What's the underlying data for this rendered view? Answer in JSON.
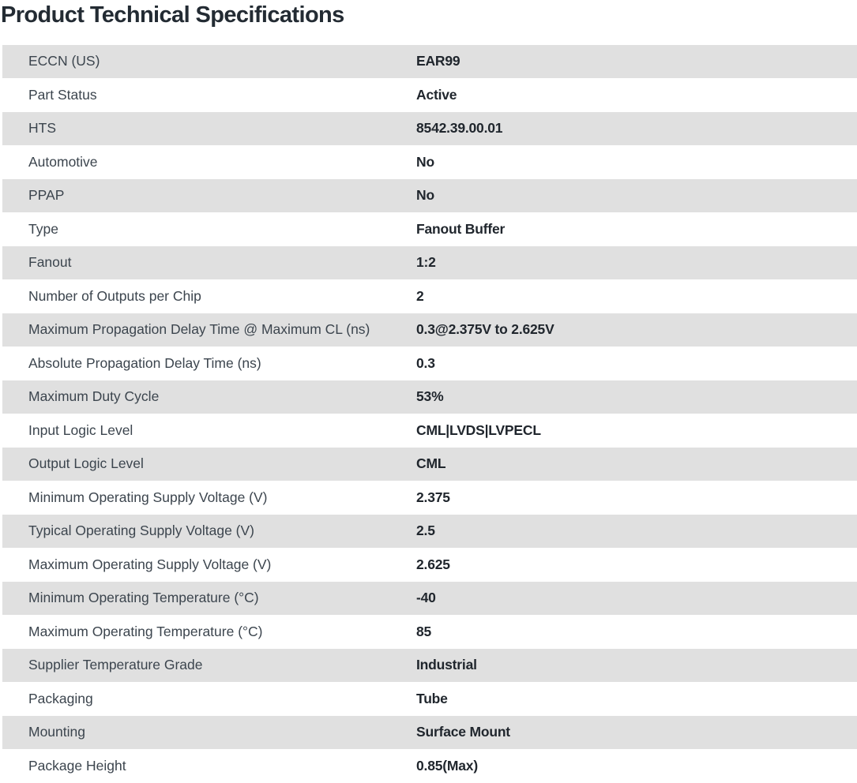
{
  "page_title": "Product Technical Specifications",
  "colors": {
    "row_alt_bg": "#e0e0e0",
    "row_bg": "#ffffff",
    "title_color": "#232b33",
    "label_color": "#3c454e",
    "value_color": "#20262d"
  },
  "spec_table": {
    "rows": [
      {
        "label": "ECCN (US)",
        "value": "EAR99"
      },
      {
        "label": "Part Status",
        "value": "Active"
      },
      {
        "label": "HTS",
        "value": "8542.39.00.01"
      },
      {
        "label": "Automotive",
        "value": "No"
      },
      {
        "label": "PPAP",
        "value": "No"
      },
      {
        "label": "Type",
        "value": "Fanout Buffer"
      },
      {
        "label": "Fanout",
        "value": "1:2"
      },
      {
        "label": "Number of Outputs per Chip",
        "value": "2"
      },
      {
        "label": "Maximum Propagation Delay Time @ Maximum CL (ns)",
        "value": "0.3@2.375V to 2.625V"
      },
      {
        "label": "Absolute Propagation Delay Time (ns)",
        "value": "0.3"
      },
      {
        "label": "Maximum Duty Cycle",
        "value": "53%"
      },
      {
        "label": "Input Logic Level",
        "value": "CML|LVDS|LVPECL"
      },
      {
        "label": "Output Logic Level",
        "value": "CML"
      },
      {
        "label": "Minimum Operating Supply Voltage (V)",
        "value": "2.375"
      },
      {
        "label": "Typical Operating Supply Voltage (V)",
        "value": "2.5"
      },
      {
        "label": "Maximum Operating Supply Voltage (V)",
        "value": "2.625"
      },
      {
        "label": "Minimum Operating Temperature (°C)",
        "value": "-40"
      },
      {
        "label": "Maximum Operating Temperature (°C)",
        "value": "85"
      },
      {
        "label": "Supplier Temperature Grade",
        "value": "Industrial"
      },
      {
        "label": "Packaging",
        "value": "Tube"
      },
      {
        "label": "Mounting",
        "value": "Surface Mount"
      },
      {
        "label": "Package Height",
        "value": "0.85(Max)"
      }
    ]
  }
}
